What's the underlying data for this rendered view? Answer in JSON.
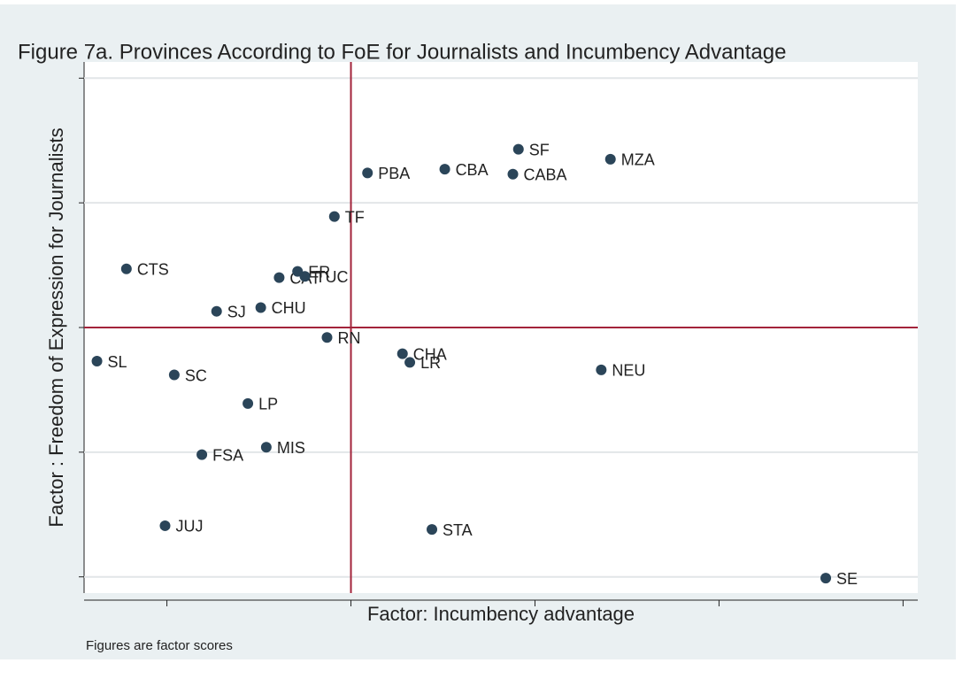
{
  "chart_data": {
    "type": "scatter",
    "title": "Figure 7a. Provinces According to FoE for Journalists and Incumbency Advantage",
    "x_label": "Factor: Incumbency advantage",
    "y_label": "Factor : Freedom of Expression for Journalists",
    "note": "Figures are factor scores",
    "color": "#2b4559",
    "reference_color": "#a3243b",
    "xline": 0,
    "yline": 0,
    "grid": true,
    "xlim": [
      -1.45,
      3.08
    ],
    "ylim": [
      -2.13,
      2.13
    ],
    "xticks": [
      -1,
      0,
      1,
      2,
      3
    ],
    "yticks": [
      -2,
      -1,
      0,
      1,
      2
    ],
    "labels": [
      "SL",
      "CTS",
      "SC",
      "SJ",
      "FSA",
      "JUJ",
      "LP",
      "MIS",
      "CHU",
      "CAT",
      "ER",
      "TUC",
      "RN",
      "TF",
      "PBA",
      "CBA",
      "CABA",
      "SF",
      "MZA",
      "CHA",
      "LR",
      "STA",
      "NEU",
      "SE"
    ],
    "x": [
      -1.38,
      -1.22,
      -0.96,
      -0.73,
      -0.81,
      -1.01,
      -0.56,
      -0.46,
      -0.49,
      -0.39,
      -0.29,
      -0.25,
      -0.13,
      -0.09,
      0.09,
      0.51,
      0.88,
      0.91,
      1.41,
      0.28,
      0.32,
      0.44,
      1.36,
      2.58
    ],
    "y": [
      -0.27,
      0.47,
      -0.38,
      0.13,
      -1.02,
      -1.59,
      -0.61,
      -0.96,
      0.16,
      0.4,
      0.45,
      0.41,
      -0.08,
      0.89,
      1.24,
      1.27,
      1.23,
      1.43,
      1.35,
      -0.21,
      -0.28,
      -1.62,
      -0.34,
      -2.01
    ]
  }
}
